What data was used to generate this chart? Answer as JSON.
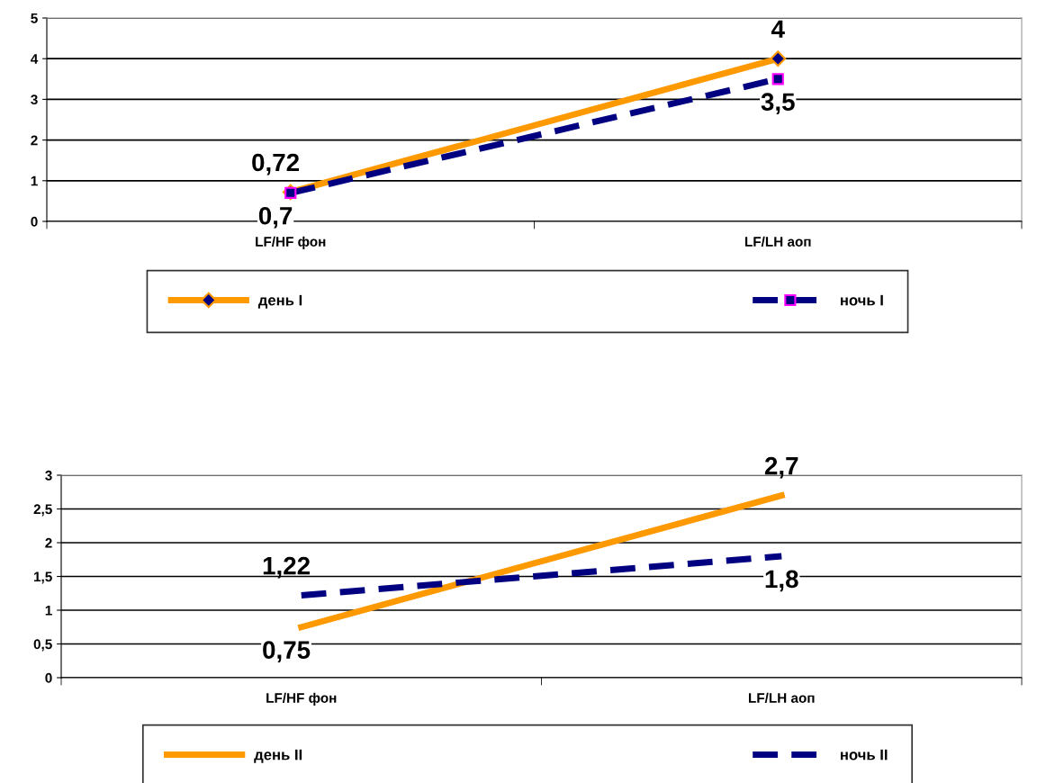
{
  "chart_data": [
    {
      "type": "line",
      "categories": [
        "LF/HF фон",
        "LF/LH аоп"
      ],
      "ylim": [
        0,
        5
      ],
      "yticks": [
        0,
        1,
        2,
        3,
        4,
        5
      ],
      "grid": "y",
      "legend": "bottom",
      "series": [
        {
          "name": "день I",
          "color": "#ff9900",
          "values": [
            0.72,
            4
          ],
          "value_labels": [
            "0,72",
            "4"
          ],
          "marker": "diamond",
          "line_style": "solid"
        },
        {
          "name": "ночь I",
          "color": "#000080",
          "values": [
            0.7,
            3.5
          ],
          "value_labels": [
            "0,7",
            "3,5"
          ],
          "marker": "square",
          "line_style": "dashed"
        }
      ]
    },
    {
      "type": "line",
      "categories": [
        "LF/HF фон",
        "LF/LH аоп"
      ],
      "ylim": [
        0,
        3
      ],
      "yticks": [
        0,
        {
          "value": 0.5,
          "label": "0,5"
        },
        1,
        {
          "value": 1.5,
          "label": "1,5"
        },
        2,
        {
          "value": 2.5,
          "label": "2,5"
        },
        3
      ],
      "grid": "y",
      "legend": "bottom",
      "series": [
        {
          "name": "день II",
          "color": "#ff9900",
          "values": [
            0.75,
            2.7
          ],
          "value_labels": [
            "0,75",
            "2,7"
          ],
          "marker": "none",
          "line_style": "solid"
        },
        {
          "name": "ночь II",
          "color": "#000080",
          "values": [
            1.22,
            1.8
          ],
          "value_labels": [
            "1,22",
            "1,8"
          ],
          "marker": "none",
          "line_style": "dashed"
        }
      ]
    }
  ]
}
